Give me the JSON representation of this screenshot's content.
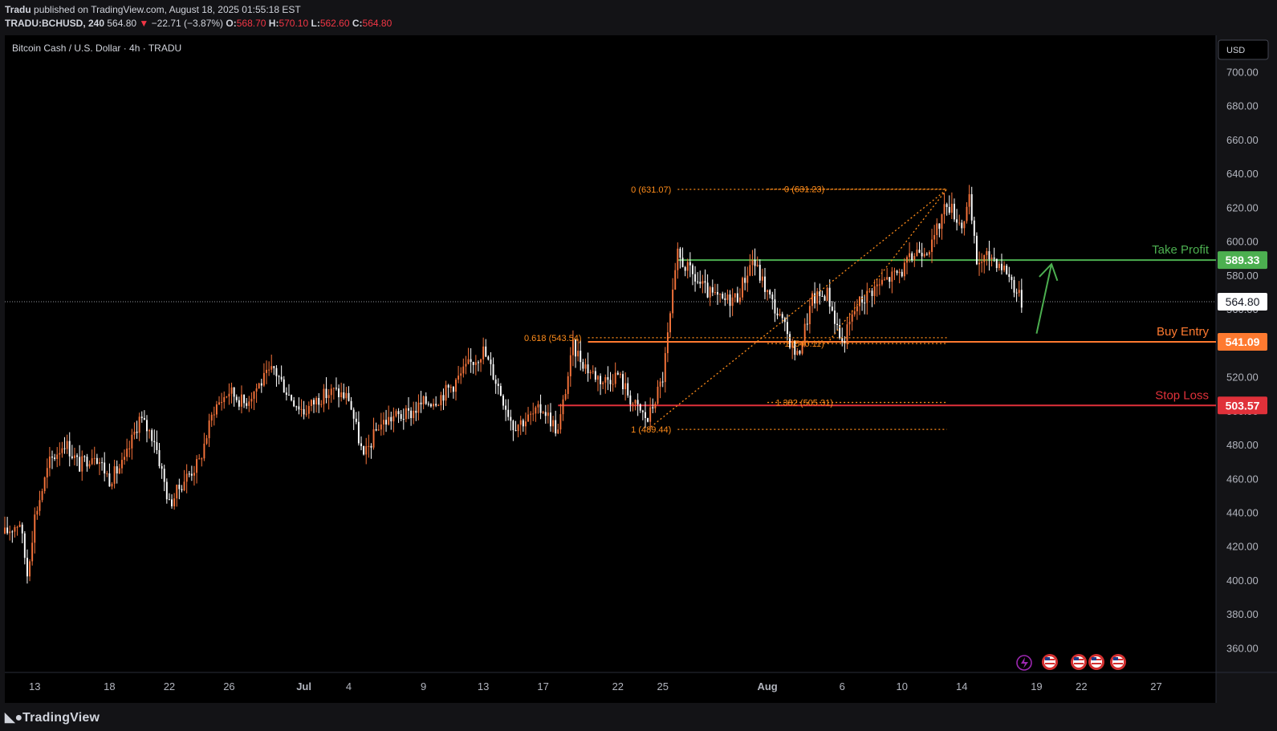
{
  "header": {
    "publisher": "Tradu",
    "published_text": "published on TradingView.com, August 18, 2025 01:55:18 EST",
    "symbol": "TRADU:BCHUSD, 240",
    "last": "564.80",
    "change": "−22.71 (−3.87%)",
    "o_label": "O:",
    "o": "568.70",
    "h_label": "H:",
    "h": "570.10",
    "l_label": "L:",
    "l": "562.60",
    "c_label": "C:",
    "c": "564.80"
  },
  "chart_title": "Bitcoin Cash / U.S. Dollar · 4h · TRADU",
  "currency_button": "USD",
  "footer": {
    "logo_text": "TradingView"
  },
  "colors": {
    "background": "#000000",
    "up": "#f7743b",
    "down": "#ffffff",
    "take_profit": "#4caf50",
    "buy_entry": "#ff7a30",
    "stop_loss": "#e0313a",
    "fib": "#ff8c1a",
    "arrow": "#4caf50"
  },
  "chart_data": {
    "type": "candlestick",
    "title": "Bitcoin Cash / U.S. Dollar · 4h · TRADU",
    "y_axis": {
      "ticks": [
        360,
        380,
        400,
        420,
        440,
        460,
        480,
        500,
        520,
        540,
        560,
        580,
        600,
        620,
        640,
        660,
        680,
        700
      ],
      "tick_labels": [
        "360.00",
        "380.00",
        "400.00",
        "420.00",
        "440.00",
        "460.00",
        "480.00",
        "500.00",
        "520.00",
        "540.00",
        "560.00",
        "580.00",
        "600.00",
        "620.00",
        "640.00",
        "660.00",
        "680.00",
        "700.00"
      ],
      "ylim": [
        346,
        722
      ]
    },
    "x_axis": {
      "tick_labels": [
        "13",
        "18",
        "22",
        "26",
        "Jul",
        "4",
        "9",
        "13",
        "17",
        "22",
        "25",
        "Aug",
        "6",
        "10",
        "14",
        "19",
        "22",
        "27"
      ],
      "tick_dates": [
        "2025-06-13",
        "2025-06-18",
        "2025-06-22",
        "2025-06-26",
        "2025-07-01",
        "2025-07-04",
        "2025-07-09",
        "2025-07-13",
        "2025-07-17",
        "2025-07-22",
        "2025-07-25",
        "2025-08-01",
        "2025-08-06",
        "2025-08-10",
        "2025-08-14",
        "2025-08-19",
        "2025-08-22",
        "2025-08-27"
      ],
      "xlim": [
        "2025-06-11",
        "2025-08-31"
      ]
    },
    "price_path": [
      [
        "2025-06-11",
        428
      ],
      [
        "2025-06-12",
        435
      ],
      [
        "2025-06-12T12",
        404
      ],
      [
        "2025-06-13",
        438
      ],
      [
        "2025-06-14",
        470
      ],
      [
        "2025-06-15",
        482
      ],
      [
        "2025-06-16",
        468
      ],
      [
        "2025-06-17",
        476
      ],
      [
        "2025-06-18",
        460
      ],
      [
        "2025-06-19",
        470
      ],
      [
        "2025-06-20",
        496
      ],
      [
        "2025-06-21",
        484
      ],
      [
        "2025-06-22",
        445
      ],
      [
        "2025-06-23",
        460
      ],
      [
        "2025-06-24",
        470
      ],
      [
        "2025-06-25",
        502
      ],
      [
        "2025-06-26",
        512
      ],
      [
        "2025-06-27",
        505
      ],
      [
        "2025-06-28",
        516
      ],
      [
        "2025-06-29",
        525
      ],
      [
        "2025-06-30",
        510
      ],
      [
        "2025-07-01",
        500
      ],
      [
        "2025-07-02",
        508
      ],
      [
        "2025-07-03",
        512
      ],
      [
        "2025-07-04",
        508
      ],
      [
        "2025-07-05",
        472
      ],
      [
        "2025-07-06",
        492
      ],
      [
        "2025-07-07",
        497
      ],
      [
        "2025-07-08",
        498
      ],
      [
        "2025-07-09",
        505
      ],
      [
        "2025-07-10",
        508
      ],
      [
        "2025-07-11",
        516
      ],
      [
        "2025-07-12",
        527
      ],
      [
        "2025-07-13",
        536
      ],
      [
        "2025-07-14",
        515
      ],
      [
        "2025-07-15",
        492
      ],
      [
        "2025-07-16",
        496
      ],
      [
        "2025-07-17",
        502
      ],
      [
        "2025-07-18",
        488
      ],
      [
        "2025-07-19",
        538
      ],
      [
        "2025-07-20",
        525
      ],
      [
        "2025-07-21",
        518
      ],
      [
        "2025-07-22",
        522
      ],
      [
        "2025-07-23",
        505
      ],
      [
        "2025-07-24",
        495
      ],
      [
        "2025-07-25",
        520
      ],
      [
        "2025-07-26",
        592
      ],
      [
        "2025-07-27",
        580
      ],
      [
        "2025-07-28",
        570
      ],
      [
        "2025-07-29",
        565
      ],
      [
        "2025-07-30",
        568
      ],
      [
        "2025-07-31",
        590
      ],
      [
        "2025-08-01",
        570
      ],
      [
        "2025-08-02",
        552
      ],
      [
        "2025-08-03",
        532
      ],
      [
        "2025-08-04",
        566
      ],
      [
        "2025-08-05",
        570
      ],
      [
        "2025-08-06",
        540
      ],
      [
        "2025-08-07",
        563
      ],
      [
        "2025-08-08",
        572
      ],
      [
        "2025-08-09",
        578
      ],
      [
        "2025-08-10",
        583
      ],
      [
        "2025-08-11",
        595
      ],
      [
        "2025-08-12",
        598
      ],
      [
        "2025-08-13",
        624
      ],
      [
        "2025-08-14",
        610
      ],
      [
        "2025-08-14T12",
        624
      ],
      [
        "2025-08-15",
        588
      ],
      [
        "2025-08-16",
        592
      ],
      [
        "2025-08-17",
        583
      ],
      [
        "2025-08-18",
        564.8
      ]
    ],
    "last_price": 564.8,
    "last_price_label": "564.80",
    "levels": [
      {
        "name": "Take Profit",
        "value": 589.33,
        "label": "589.33",
        "color": "#4caf50",
        "from": "2025-07-26"
      },
      {
        "name": "Buy Entry",
        "value": 541.09,
        "label": "541.09",
        "color": "#ff7a30",
        "from": "2025-07-20"
      },
      {
        "name": "Stop Loss",
        "value": 503.57,
        "label": "503.57",
        "color": "#e0313a",
        "from": "2025-07-18"
      }
    ],
    "fib_levels": [
      {
        "label": "0 (631.07)",
        "value": 631.07,
        "from": "2025-07-26",
        "to": "2025-08-13",
        "text_at": "left"
      },
      {
        "label": "0 (631.23)",
        "value": 631.23,
        "from": "2025-08-01",
        "to": "2025-08-13",
        "text_at": "inline"
      },
      {
        "label": "0.618 (543.54)",
        "value": 543.54,
        "from": "2025-07-20",
        "to": "2025-08-13",
        "text_at": "left"
      },
      {
        "label": "1 (540.11)",
        "value": 540.11,
        "from": "2025-08-01",
        "to": "2025-08-13",
        "text_at": "inline"
      },
      {
        "label": "1.382 (505.31)",
        "value": 505.31,
        "from": "2025-08-01",
        "to": "2025-08-13",
        "text_at": "inline"
      },
      {
        "label": "1 (489.44)",
        "value": 489.44,
        "from": "2025-07-26",
        "to": "2025-08-13",
        "text_at": "left"
      }
    ],
    "fib_trend_lines": [
      {
        "from": [
          "2025-07-24",
          489.44
        ],
        "to": [
          "2025-08-13",
          631.07
        ]
      },
      {
        "from": [
          "2025-08-05",
          540.11
        ],
        "to": [
          "2025-08-13",
          631.23
        ]
      }
    ],
    "arrow": {
      "from": [
        "2025-08-19",
        546
      ],
      "to": [
        "2025-08-20",
        587
      ],
      "color": "#4caf50"
    }
  }
}
